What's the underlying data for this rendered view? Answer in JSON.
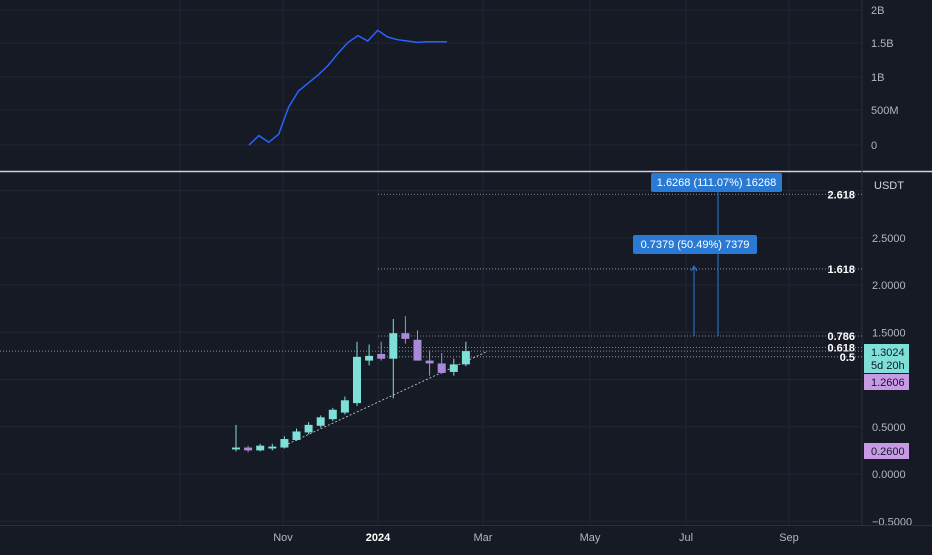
{
  "colors": {
    "background": "#161a25",
    "grid": "#222632",
    "up_candle": "#7ee0d8",
    "down_candle": "#a98ad8",
    "volume_line": "#2962ff",
    "fib_line": "#d1d4dc",
    "measure_blue": "#2a7ad4",
    "price_badge_up": "#7ee0d8",
    "price_badge_down": "#c89ae6"
  },
  "top_axis": {
    "ticks": [
      "2B",
      "1.5B",
      "1B",
      "500M",
      "0"
    ]
  },
  "main_axis": {
    "currency": "USDT",
    "ticks": [
      "2.5000",
      "2.0000",
      "1.5000",
      "0.5000",
      "0.0000",
      "−0.5000"
    ]
  },
  "time_axis": {
    "ticks": [
      {
        "label": "Nov",
        "bold": false
      },
      {
        "label": "2024",
        "bold": true
      },
      {
        "label": "Mar",
        "bold": false
      },
      {
        "label": "May",
        "bold": false
      },
      {
        "label": "Jul",
        "bold": false
      },
      {
        "label": "Sep",
        "bold": false
      }
    ]
  },
  "fib_levels": [
    {
      "label": "2.618",
      "value": 2.96
    },
    {
      "label": "1.618",
      "value": 2.17
    },
    {
      "label": "0.786",
      "value": 1.46
    },
    {
      "label": "0.618",
      "value": 1.34
    },
    {
      "label": "0.5",
      "value": 1.24
    }
  ],
  "badges": {
    "current_price": "1.3024",
    "countdown": "5d 20h",
    "level_a": "1.2606",
    "level_b": "0.2600"
  },
  "measurements": [
    {
      "text": "1.6268 (111.07%) 16268",
      "from": 1.46,
      "to": 3.09
    },
    {
      "text": "0.7379 (50.49%) 7379",
      "from": 1.46,
      "to": 2.2
    }
  ],
  "chart_data": {
    "type": "candlestick",
    "interval": "1W",
    "currency": "USDT",
    "candles": [
      {
        "o": 0.26,
        "h": 0.52,
        "l": 0.24,
        "c": 0.28
      },
      {
        "o": 0.28,
        "h": 0.3,
        "l": 0.23,
        "c": 0.25
      },
      {
        "o": 0.25,
        "h": 0.32,
        "l": 0.24,
        "c": 0.3
      },
      {
        "o": 0.27,
        "h": 0.32,
        "l": 0.25,
        "c": 0.29
      },
      {
        "o": 0.28,
        "h": 0.4,
        "l": 0.27,
        "c": 0.37
      },
      {
        "o": 0.36,
        "h": 0.48,
        "l": 0.35,
        "c": 0.45
      },
      {
        "o": 0.44,
        "h": 0.55,
        "l": 0.42,
        "c": 0.52
      },
      {
        "o": 0.51,
        "h": 0.62,
        "l": 0.49,
        "c": 0.6
      },
      {
        "o": 0.58,
        "h": 0.7,
        "l": 0.56,
        "c": 0.68
      },
      {
        "o": 0.65,
        "h": 0.82,
        "l": 0.63,
        "c": 0.78
      },
      {
        "o": 0.75,
        "h": 1.4,
        "l": 0.72,
        "c": 1.24
      },
      {
        "o": 1.2,
        "h": 1.37,
        "l": 1.15,
        "c": 1.25
      },
      {
        "o": 1.27,
        "h": 1.4,
        "l": 1.2,
        "c": 1.22
      },
      {
        "o": 1.22,
        "h": 1.64,
        "l": 0.8,
        "c": 1.49
      },
      {
        "o": 1.49,
        "h": 1.67,
        "l": 1.38,
        "c": 1.43
      },
      {
        "o": 1.42,
        "h": 1.52,
        "l": 1.2,
        "c": 1.2
      },
      {
        "o": 1.2,
        "h": 1.31,
        "l": 1.04,
        "c": 1.17
      },
      {
        "o": 1.17,
        "h": 1.28,
        "l": 1.06,
        "c": 1.07
      },
      {
        "o": 1.08,
        "h": 1.22,
        "l": 1.04,
        "c": 1.16
      },
      {
        "o": 1.16,
        "h": 1.4,
        "l": 1.14,
        "c": 1.3
      }
    ],
    "volume_series": {
      "values_billions": [
        0.0,
        0.14,
        0.04,
        0.16,
        0.56,
        0.8,
        0.92,
        1.04,
        1.18,
        1.36,
        1.52,
        1.62,
        1.54,
        1.7,
        1.6,
        1.56,
        1.54,
        1.52,
        1.53,
        1.53,
        1.53
      ],
      "ylim": [
        0,
        2
      ]
    },
    "ylim": [
      -0.5,
      3.0
    ],
    "trendline": [
      {
        "i": 4,
        "v": 0.3
      },
      {
        "i": 20.8,
        "v": 1.3
      }
    ]
  }
}
